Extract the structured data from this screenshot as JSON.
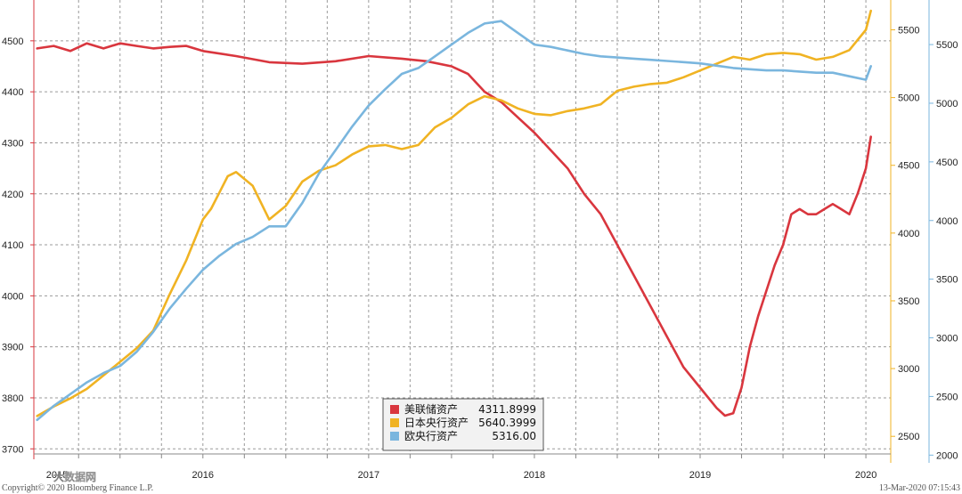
{
  "colors": {
    "fed": "#d9363e",
    "boj": "#f0b323",
    "ecb": "#7ab6de",
    "grid": "#9a9a9a",
    "left_axis": "#d9363e",
    "mid_axis": "#f0b323",
    "right_axis": "#7ab6de",
    "legend_bg": "#f2f2f2"
  },
  "footer": {
    "copyright": "Copyright© 2020 Bloomberg Finance L.P.",
    "timestamp": "13-Mar-2020 07:15:43",
    "watermark": "大数据网"
  },
  "chart_data": {
    "type": "line",
    "x_range": [
      2014.98,
      2020.15
    ],
    "x_ticks": [
      {
        "value": 2015.12,
        "label": "2015"
      },
      {
        "value": 2016.0,
        "label": "2016"
      },
      {
        "value": 2017.0,
        "label": "2017"
      },
      {
        "value": 2018.0,
        "label": "2018"
      },
      {
        "value": 2019.0,
        "label": "2019"
      },
      {
        "value": 2020.0,
        "label": "2020"
      }
    ],
    "x_gridlines": [
      2015.25,
      2015.5,
      2015.75,
      2016.0,
      2016.25,
      2016.5,
      2016.75,
      2017.0,
      2017.25,
      2017.5,
      2017.75,
      2018.0,
      2018.25,
      2018.5,
      2018.75,
      2019.0,
      2019.25,
      2019.5,
      2019.75,
      2020.0
    ],
    "axes": {
      "left": {
        "range": [
          3690,
          4580
        ],
        "ticks": [
          3700,
          3800,
          3900,
          4000,
          4100,
          4200,
          4300,
          4400,
          4500
        ],
        "color_key": "left_axis"
      },
      "mid": {
        "range": [
          2370,
          5720
        ],
        "ticks": [
          2500,
          3000,
          3500,
          4000,
          4500,
          5000,
          5500
        ],
        "color_key": "mid_axis"
      },
      "right": {
        "range": [
          2010,
          5880
        ],
        "ticks": [
          2000,
          2500,
          3000,
          3500,
          4000,
          4500,
          5000,
          5500
        ],
        "color_key": "right_axis"
      }
    },
    "legend": {
      "position": "bottom-center",
      "entries": [
        {
          "label": "美联储资产",
          "value": "4311.8999",
          "color_key": "fed"
        },
        {
          "label": "日本央行资产",
          "value": "5640.3999",
          "color_key": "boj"
        },
        {
          "label": "欧央行资产",
          "value": "5316.00",
          "color_key": "ecb"
        }
      ]
    },
    "series": [
      {
        "name": "美联储资产",
        "axis": "left",
        "color_key": "fed",
        "x": [
          2015.0,
          2015.1,
          2015.2,
          2015.3,
          2015.4,
          2015.5,
          2015.6,
          2015.7,
          2015.8,
          2015.9,
          2016.0,
          2016.2,
          2016.4,
          2016.6,
          2016.8,
          2017.0,
          2017.2,
          2017.35,
          2017.5,
          2017.6,
          2017.7,
          2017.8,
          2017.9,
          2018.0,
          2018.1,
          2018.2,
          2018.3,
          2018.4,
          2018.5,
          2018.6,
          2018.7,
          2018.8,
          2018.9,
          2019.0,
          2019.05,
          2019.1,
          2019.15,
          2019.2,
          2019.25,
          2019.3,
          2019.35,
          2019.4,
          2019.45,
          2019.5,
          2019.55,
          2019.6,
          2019.65,
          2019.7,
          2019.75,
          2019.8,
          2019.85,
          2019.9,
          2019.95,
          2020.0,
          2020.03
        ],
        "y": [
          4485,
          4490,
          4480,
          4495,
          4485,
          4495,
          4490,
          4485,
          4488,
          4490,
          4480,
          4470,
          4458,
          4455,
          4460,
          4470,
          4465,
          4460,
          4450,
          4435,
          4400,
          4380,
          4350,
          4320,
          4285,
          4250,
          4200,
          4160,
          4100,
          4040,
          3980,
          3920,
          3860,
          3820,
          3800,
          3780,
          3765,
          3770,
          3820,
          3900,
          3960,
          4010,
          4060,
          4100,
          4160,
          4170,
          4160,
          4160,
          4170,
          4180,
          4170,
          4160,
          4200,
          4250,
          4311.9
        ]
      },
      {
        "name": "日本央行资产",
        "axis": "mid",
        "color_key": "boj",
        "x": [
          2015.0,
          2015.1,
          2015.2,
          2015.3,
          2015.4,
          2015.5,
          2015.6,
          2015.7,
          2015.8,
          2015.9,
          2016.0,
          2016.05,
          2016.1,
          2016.15,
          2016.2,
          2016.25,
          2016.3,
          2016.4,
          2016.5,
          2016.6,
          2016.7,
          2016.8,
          2016.9,
          2017.0,
          2017.1,
          2017.2,
          2017.3,
          2017.4,
          2017.5,
          2017.6,
          2017.7,
          2017.8,
          2017.9,
          2018.0,
          2018.1,
          2018.2,
          2018.3,
          2018.4,
          2018.5,
          2018.6,
          2018.7,
          2018.8,
          2018.9,
          2019.0,
          2019.1,
          2019.2,
          2019.3,
          2019.4,
          2019.5,
          2019.6,
          2019.7,
          2019.8,
          2019.9,
          2020.0,
          2020.03
        ],
        "y": [
          2650,
          2720,
          2780,
          2850,
          2950,
          3050,
          3150,
          3280,
          3550,
          3800,
          4100,
          4180,
          4300,
          4420,
          4450,
          4400,
          4350,
          4100,
          4200,
          4380,
          4460,
          4500,
          4580,
          4640,
          4650,
          4620,
          4650,
          4780,
          4850,
          4950,
          5010,
          4980,
          4920,
          4880,
          4870,
          4900,
          4920,
          4950,
          5050,
          5080,
          5100,
          5110,
          5150,
          5200,
          5250,
          5300,
          5280,
          5320,
          5330,
          5320,
          5280,
          5300,
          5350,
          5500,
          5640.4
        ]
      },
      {
        "name": "欧央行资产",
        "axis": "right",
        "color_key": "ecb",
        "x": [
          2015.0,
          2015.1,
          2015.2,
          2015.3,
          2015.4,
          2015.5,
          2015.6,
          2015.7,
          2015.8,
          2015.9,
          2016.0,
          2016.1,
          2016.2,
          2016.3,
          2016.4,
          2016.5,
          2016.6,
          2016.7,
          2016.8,
          2016.9,
          2017.0,
          2017.1,
          2017.2,
          2017.3,
          2017.4,
          2017.5,
          2017.6,
          2017.7,
          2017.8,
          2017.9,
          2018.0,
          2018.1,
          2018.2,
          2018.3,
          2018.4,
          2018.5,
          2018.6,
          2018.7,
          2018.8,
          2018.9,
          2019.0,
          2019.1,
          2019.2,
          2019.3,
          2019.4,
          2019.5,
          2019.6,
          2019.7,
          2019.8,
          2019.9,
          2020.0,
          2020.03
        ],
        "y": [
          2300,
          2420,
          2520,
          2620,
          2700,
          2760,
          2880,
          3050,
          3250,
          3420,
          3580,
          3700,
          3800,
          3860,
          3950,
          3950,
          4150,
          4400,
          4600,
          4800,
          4980,
          5120,
          5250,
          5300,
          5400,
          5500,
          5600,
          5680,
          5700,
          5600,
          5500,
          5480,
          5450,
          5420,
          5400,
          5390,
          5380,
          5370,
          5360,
          5350,
          5340,
          5320,
          5300,
          5290,
          5280,
          5280,
          5270,
          5260,
          5260,
          5230,
          5200,
          5316.0
        ]
      }
    ]
  }
}
